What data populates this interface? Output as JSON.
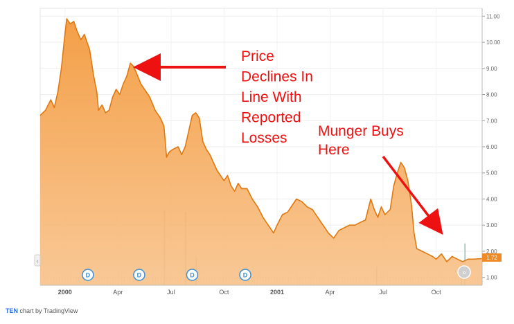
{
  "chart_data": {
    "type": "area",
    "title": "",
    "xlabel": "",
    "ylabel": "",
    "ylim": [
      0.7,
      11.3
    ],
    "grid": true,
    "y_ticks": [
      1,
      2,
      3,
      4,
      5,
      6,
      7,
      8,
      9,
      10,
      11
    ],
    "y_tick_labels": [
      "1.00",
      "2.00",
      "3.00",
      "4.00",
      "5.00",
      "6.00",
      "7.00",
      "8.00",
      "9.00",
      "10.00",
      "11.00"
    ],
    "x_ticks": [
      {
        "label": "2000",
        "t": 0
      },
      {
        "label": "Apr",
        "t": 3
      },
      {
        "label": "Jul",
        "t": 6
      },
      {
        "label": "Oct",
        "t": 9
      },
      {
        "label": "2001",
        "t": 12
      },
      {
        "label": "Apr",
        "t": 15
      },
      {
        "label": "Jul",
        "t": 18
      },
      {
        "label": "Oct",
        "t": 21
      }
    ],
    "x_range": [
      -1.4,
      23.6
    ],
    "series": [
      {
        "name": "",
        "color": "#f0a050",
        "points": [
          [
            -1.4,
            7.2
          ],
          [
            -1.1,
            7.4
          ],
          [
            -0.8,
            7.8
          ],
          [
            -0.6,
            7.5
          ],
          [
            -0.4,
            8.1
          ],
          [
            -0.2,
            9.0
          ],
          [
            0,
            10.3
          ],
          [
            0.1,
            10.9
          ],
          [
            0.3,
            10.7
          ],
          [
            0.5,
            10.8
          ],
          [
            0.7,
            10.4
          ],
          [
            0.9,
            10.1
          ],
          [
            1.1,
            10.3
          ],
          [
            1.4,
            9.7
          ],
          [
            1.6,
            8.8
          ],
          [
            1.8,
            8.1
          ],
          [
            1.9,
            7.4
          ],
          [
            2.1,
            7.6
          ],
          [
            2.3,
            7.3
          ],
          [
            2.5,
            7.4
          ],
          [
            2.7,
            7.9
          ],
          [
            2.9,
            8.2
          ],
          [
            3.1,
            8.0
          ],
          [
            3.3,
            8.4
          ],
          [
            3.5,
            8.7
          ],
          [
            3.7,
            9.2
          ],
          [
            3.85,
            9.1
          ],
          [
            4.0,
            8.9
          ],
          [
            4.3,
            8.4
          ],
          [
            4.5,
            8.2
          ],
          [
            4.8,
            7.9
          ],
          [
            5.1,
            7.4
          ],
          [
            5.4,
            7.1
          ],
          [
            5.6,
            6.8
          ],
          [
            5.75,
            5.6
          ],
          [
            5.9,
            5.8
          ],
          [
            6.1,
            5.9
          ],
          [
            6.4,
            6.0
          ],
          [
            6.6,
            5.7
          ],
          [
            6.8,
            6.0
          ],
          [
            7.0,
            6.6
          ],
          [
            7.2,
            7.2
          ],
          [
            7.4,
            7.3
          ],
          [
            7.6,
            7.1
          ],
          [
            7.8,
            6.2
          ],
          [
            8.0,
            5.9
          ],
          [
            8.2,
            5.7
          ],
          [
            8.4,
            5.4
          ],
          [
            8.6,
            5.1
          ],
          [
            8.8,
            4.9
          ],
          [
            9.0,
            4.7
          ],
          [
            9.2,
            4.9
          ],
          [
            9.4,
            4.5
          ],
          [
            9.6,
            4.3
          ],
          [
            9.8,
            4.6
          ],
          [
            10.0,
            4.4
          ],
          [
            10.3,
            4.4
          ],
          [
            10.6,
            4.0
          ],
          [
            10.9,
            3.7
          ],
          [
            11.2,
            3.3
          ],
          [
            11.5,
            3.0
          ],
          [
            11.8,
            2.7
          ],
          [
            12.0,
            3.0
          ],
          [
            12.3,
            3.4
          ],
          [
            12.6,
            3.5
          ],
          [
            12.9,
            3.8
          ],
          [
            13.1,
            4.0
          ],
          [
            13.4,
            3.9
          ],
          [
            13.7,
            3.7
          ],
          [
            14.0,
            3.6
          ],
          [
            14.3,
            3.3
          ],
          [
            14.6,
            3.0
          ],
          [
            14.9,
            2.7
          ],
          [
            15.2,
            2.5
          ],
          [
            15.5,
            2.8
          ],
          [
            15.8,
            2.9
          ],
          [
            16.1,
            3.0
          ],
          [
            16.4,
            3.0
          ],
          [
            16.7,
            3.1
          ],
          [
            17.0,
            3.2
          ],
          [
            17.3,
            4.0
          ],
          [
            17.5,
            3.6
          ],
          [
            17.7,
            3.3
          ],
          [
            17.9,
            3.7
          ],
          [
            18.1,
            3.4
          ],
          [
            18.4,
            3.6
          ],
          [
            18.6,
            4.5
          ],
          [
            18.8,
            5.0
          ],
          [
            19.0,
            5.4
          ],
          [
            19.2,
            5.2
          ],
          [
            19.4,
            4.7
          ],
          [
            19.6,
            3.8
          ],
          [
            19.75,
            2.7
          ],
          [
            19.9,
            2.1
          ],
          [
            20.2,
            2.0
          ],
          [
            20.5,
            1.9
          ],
          [
            20.8,
            1.8
          ],
          [
            21.0,
            1.7
          ],
          [
            21.3,
            1.9
          ],
          [
            21.6,
            1.6
          ],
          [
            21.9,
            1.8
          ],
          [
            22.2,
            1.7
          ],
          [
            22.5,
            1.6
          ],
          [
            22.8,
            1.7
          ],
          [
            23.1,
            1.7
          ],
          [
            23.6,
            1.72
          ]
        ]
      }
    ],
    "volume_spikes": [
      {
        "t": 5.6,
        "v": 3.6
      },
      {
        "t": 6.8,
        "v": 3.5
      },
      {
        "t": 7.4,
        "v": 1.8
      },
      {
        "t": 17.6,
        "v": 1.4
      },
      {
        "t": 22.4,
        "v": 1.4
      },
      {
        "t": 22.6,
        "v": 2.3
      }
    ],
    "dividend_markers": [
      {
        "t": 1.3,
        "label": "D"
      },
      {
        "t": 4.2,
        "label": "D"
      },
      {
        "t": 7.2,
        "label": "D"
      },
      {
        "t": 10.2,
        "label": "D"
      }
    ],
    "last_price_label": "1.72",
    "annotations": [
      {
        "text_lines": [
          "Price",
          "Declines In",
          "Line With",
          "Reported",
          "Losses"
        ],
        "color": "#ee1111"
      },
      {
        "text_lines": [
          "Munger Buys",
          "Here"
        ],
        "color": "#ee1111"
      }
    ]
  },
  "footer": {
    "ticker": "TEN",
    "text": " chart by TradingView"
  }
}
